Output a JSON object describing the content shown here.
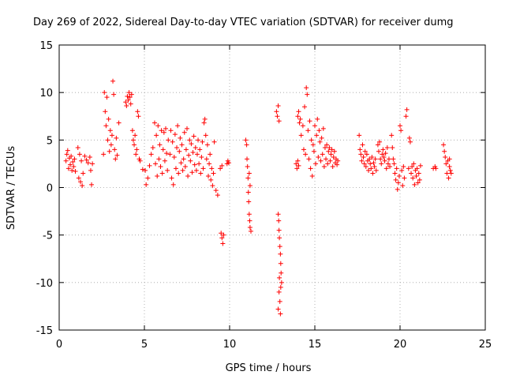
{
  "chart_data": {
    "type": "scatter",
    "title": "Day 269 of 2022, Sidereal Day-to-day VTEC variation (SDTVAR) for receiver dumg",
    "xlabel": "GPS time / hours",
    "ylabel": "SDTVAR / TECUs",
    "xlim": [
      0,
      25
    ],
    "ylim": [
      -15,
      15
    ],
    "x_ticks": [
      0,
      5,
      10,
      15,
      20,
      25
    ],
    "y_ticks": [
      -15,
      -10,
      -5,
      0,
      5,
      10,
      15
    ],
    "grid": true,
    "marker": "+",
    "color": "#ff0000",
    "series": [
      {
        "name": "SDTVAR",
        "points": [
          [
            0.4,
            2.8
          ],
          [
            0.45,
            3.5
          ],
          [
            0.5,
            3.9
          ],
          [
            0.55,
            2.0
          ],
          [
            0.6,
            3.1
          ],
          [
            0.65,
            2.4
          ],
          [
            0.7,
            3.3
          ],
          [
            0.75,
            1.8
          ],
          [
            0.8,
            2.7
          ],
          [
            0.85,
            2.2
          ],
          [
            0.9,
            3.0
          ],
          [
            0.95,
            1.7
          ],
          [
            1.1,
            4.2
          ],
          [
            1.15,
            1.0
          ],
          [
            1.2,
            3.5
          ],
          [
            1.25,
            0.6
          ],
          [
            1.3,
            2.8
          ],
          [
            1.35,
            0.2
          ],
          [
            1.4,
            1.5
          ],
          [
            1.5,
            3.3
          ],
          [
            1.6,
            2.9
          ],
          [
            1.7,
            2.6
          ],
          [
            1.8,
            3.2
          ],
          [
            1.85,
            1.8
          ],
          [
            1.9,
            0.3
          ],
          [
            1.95,
            2.5
          ],
          [
            2.6,
            3.5
          ],
          [
            2.65,
            10.0
          ],
          [
            2.7,
            8.0
          ],
          [
            2.75,
            6.5
          ],
          [
            2.8,
            9.5
          ],
          [
            2.85,
            5.0
          ],
          [
            2.9,
            7.2
          ],
          [
            2.95,
            3.8
          ],
          [
            3.0,
            6.0
          ],
          [
            3.05,
            4.5
          ],
          [
            3.1,
            5.5
          ],
          [
            3.15,
            11.2
          ],
          [
            3.2,
            9.8
          ],
          [
            3.25,
            4.0
          ],
          [
            3.3,
            3.0
          ],
          [
            3.35,
            5.2
          ],
          [
            3.4,
            3.4
          ],
          [
            3.5,
            6.8
          ],
          [
            3.9,
            9.0
          ],
          [
            3.95,
            8.6
          ],
          [
            4.0,
            9.6
          ],
          [
            4.05,
            9.2
          ],
          [
            4.1,
            10.0
          ],
          [
            4.15,
            9.5
          ],
          [
            4.2,
            8.8
          ],
          [
            4.25,
            9.8
          ],
          [
            4.3,
            6.0
          ],
          [
            4.35,
            5.0
          ],
          [
            4.4,
            4.5
          ],
          [
            4.45,
            5.5
          ],
          [
            4.5,
            3.5
          ],
          [
            4.55,
            4.0
          ],
          [
            4.6,
            8.0
          ],
          [
            4.65,
            7.5
          ],
          [
            4.7,
            3.0
          ],
          [
            4.75,
            2.8
          ],
          [
            4.9,
            1.9
          ],
          [
            5.05,
            1.8
          ],
          [
            5.1,
            0.3
          ],
          [
            5.2,
            1.0
          ],
          [
            5.3,
            2.3
          ],
          [
            5.4,
            3.5
          ],
          [
            5.5,
            4.2
          ],
          [
            5.6,
            6.8
          ],
          [
            5.65,
            2.5
          ],
          [
            5.7,
            5.5
          ],
          [
            5.75,
            1.2
          ],
          [
            5.8,
            6.5
          ],
          [
            5.85,
            3.0
          ],
          [
            5.9,
            4.5
          ],
          [
            5.95,
            2.2
          ],
          [
            6.0,
            6.0
          ],
          [
            6.05,
            1.5
          ],
          [
            6.1,
            4.0
          ],
          [
            6.15,
            5.8
          ],
          [
            6.2,
            2.8
          ],
          [
            6.25,
            6.2
          ],
          [
            6.3,
            3.6
          ],
          [
            6.35,
            1.8
          ],
          [
            6.4,
            5.0
          ],
          [
            6.5,
            3.5
          ],
          [
            6.55,
            6.0
          ],
          [
            6.6,
            1.0
          ],
          [
            6.65,
            4.8
          ],
          [
            6.7,
            0.3
          ],
          [
            6.75,
            3.2
          ],
          [
            6.8,
            5.6
          ],
          [
            6.85,
            2.0
          ],
          [
            6.9,
            4.2
          ],
          [
            6.95,
            6.5
          ],
          [
            7.0,
            1.5
          ],
          [
            7.05,
            3.8
          ],
          [
            7.1,
            5.2
          ],
          [
            7.15,
            2.6
          ],
          [
            7.2,
            4.5
          ],
          [
            7.25,
            1.8
          ],
          [
            7.3,
            3.0
          ],
          [
            7.35,
            5.8
          ],
          [
            7.4,
            2.2
          ],
          [
            7.45,
            4.0
          ],
          [
            7.5,
            6.2
          ],
          [
            7.55,
            1.2
          ],
          [
            7.6,
            3.4
          ],
          [
            7.65,
            5.0
          ],
          [
            7.7,
            2.8
          ],
          [
            7.75,
            4.6
          ],
          [
            7.8,
            1.6
          ],
          [
            7.85,
            3.7
          ],
          [
            7.9,
            5.4
          ],
          [
            7.95,
            2.4
          ],
          [
            8.0,
            4.2
          ],
          [
            8.05,
            1.8
          ],
          [
            8.1,
            3.5
          ],
          [
            8.15,
            5.0
          ],
          [
            8.2,
            2.5
          ],
          [
            8.25,
            4.0
          ],
          [
            8.3,
            1.5
          ],
          [
            8.35,
            3.2
          ],
          [
            8.4,
            4.8
          ],
          [
            8.45,
            2.0
          ],
          [
            8.5,
            6.8
          ],
          [
            8.55,
            7.2
          ],
          [
            8.6,
            5.5
          ],
          [
            8.65,
            3.0
          ],
          [
            8.7,
            4.5
          ],
          [
            8.75,
            1.2
          ],
          [
            8.8,
            2.5
          ],
          [
            8.85,
            3.5
          ],
          [
            8.9,
            0.8
          ],
          [
            8.95,
            2.0
          ],
          [
            9.0,
            0.2
          ],
          [
            9.05,
            1.5
          ],
          [
            9.1,
            4.8
          ],
          [
            9.2,
            -0.3
          ],
          [
            9.3,
            -0.8
          ],
          [
            9.5,
            -4.8
          ],
          [
            9.55,
            -5.3
          ],
          [
            9.6,
            -5.9
          ],
          [
            9.65,
            -5.0
          ],
          [
            9.45,
            2.0
          ],
          [
            9.55,
            2.3
          ],
          [
            9.85,
            2.5
          ],
          [
            9.9,
            2.8
          ],
          [
            9.95,
            2.6
          ],
          [
            10.95,
            5.0
          ],
          [
            11.0,
            4.5
          ],
          [
            11.02,
            3.0
          ],
          [
            11.05,
            2.2
          ],
          [
            11.08,
            1.0
          ],
          [
            11.1,
            -0.5
          ],
          [
            11.12,
            -1.5
          ],
          [
            11.15,
            -2.8
          ],
          [
            11.18,
            -3.5
          ],
          [
            11.2,
            -4.2
          ],
          [
            11.25,
            -4.6
          ],
          [
            11.15,
            1.5
          ],
          [
            11.2,
            0.2
          ],
          [
            12.75,
            8.0
          ],
          [
            12.8,
            7.5
          ],
          [
            12.85,
            8.6
          ],
          [
            12.9,
            7.0
          ],
          [
            12.85,
            -2.8
          ],
          [
            12.88,
            -3.5
          ],
          [
            12.9,
            -4.5
          ],
          [
            12.92,
            -5.3
          ],
          [
            12.95,
            -6.2
          ],
          [
            12.98,
            -7.0
          ],
          [
            13.0,
            -8.0
          ],
          [
            13.02,
            -9.0
          ],
          [
            13.05,
            -10.0
          ],
          [
            12.9,
            -11.0
          ],
          [
            12.95,
            -12.0
          ],
          [
            12.85,
            -12.8
          ],
          [
            12.98,
            -13.3
          ],
          [
            13.0,
            -10.5
          ],
          [
            12.92,
            -9.5
          ],
          [
            13.9,
            2.5
          ],
          [
            13.95,
            2.0
          ],
          [
            14.0,
            2.8
          ],
          [
            14.05,
            2.3
          ],
          [
            14.0,
            7.5
          ],
          [
            14.05,
            8.0
          ],
          [
            14.1,
            6.8
          ],
          [
            14.15,
            7.2
          ],
          [
            14.2,
            5.5
          ],
          [
            14.3,
            6.5
          ],
          [
            14.35,
            4.0
          ],
          [
            14.4,
            8.5
          ],
          [
            14.45,
            3.5
          ],
          [
            14.5,
            10.5
          ],
          [
            14.55,
            9.8
          ],
          [
            14.6,
            6.0
          ],
          [
            14.65,
            3.0
          ],
          [
            14.7,
            7.0
          ],
          [
            14.75,
            2.0
          ],
          [
            14.8,
            5.0
          ],
          [
            14.85,
            1.2
          ],
          [
            14.9,
            4.5
          ],
          [
            14.95,
            3.8
          ],
          [
            15.0,
            6.5
          ],
          [
            15.05,
            2.5
          ],
          [
            15.1,
            5.5
          ],
          [
            15.15,
            7.2
          ],
          [
            15.2,
            3.2
          ],
          [
            15.25,
            6.0
          ],
          [
            15.3,
            4.8
          ],
          [
            15.35,
            2.8
          ],
          [
            15.4,
            5.2
          ],
          [
            15.45,
            3.5
          ],
          [
            15.5,
            6.2
          ],
          [
            15.55,
            2.2
          ],
          [
            15.6,
            4.2
          ],
          [
            15.65,
            3.0
          ],
          [
            15.7,
            4.5
          ],
          [
            15.75,
            2.5
          ],
          [
            15.8,
            3.8
          ],
          [
            15.85,
            4.2
          ],
          [
            15.9,
            2.8
          ],
          [
            15.95,
            3.5
          ],
          [
            16.0,
            4.0
          ],
          [
            16.05,
            2.2
          ],
          [
            16.1,
            3.2
          ],
          [
            16.15,
            3.8
          ],
          [
            16.2,
            2.6
          ],
          [
            16.25,
            3.0
          ],
          [
            16.3,
            2.4
          ],
          [
            16.35,
            2.8
          ],
          [
            17.6,
            5.5
          ],
          [
            17.65,
            4.0
          ],
          [
            17.7,
            3.5
          ],
          [
            17.75,
            2.8
          ],
          [
            17.8,
            4.5
          ],
          [
            17.85,
            3.2
          ],
          [
            17.9,
            2.5
          ],
          [
            17.95,
            3.8
          ],
          [
            18.0,
            2.2
          ],
          [
            18.05,
            3.5
          ],
          [
            18.1,
            2.8
          ],
          [
            18.15,
            1.8
          ],
          [
            18.2,
            3.0
          ],
          [
            18.25,
            2.5
          ],
          [
            18.3,
            2.0
          ],
          [
            18.35,
            3.2
          ],
          [
            18.4,
            1.5
          ],
          [
            18.45,
            2.6
          ],
          [
            18.5,
            2.2
          ],
          [
            18.55,
            3.0
          ],
          [
            18.6,
            1.8
          ],
          [
            18.7,
            4.5
          ],
          [
            18.75,
            3.8
          ],
          [
            18.8,
            4.8
          ],
          [
            18.85,
            3.0
          ],
          [
            18.9,
            2.5
          ],
          [
            18.95,
            3.5
          ],
          [
            19.0,
            4.0
          ],
          [
            19.05,
            3.2
          ],
          [
            19.1,
            2.8
          ],
          [
            19.15,
            3.6
          ],
          [
            19.2,
            2.0
          ],
          [
            19.25,
            4.2
          ],
          [
            19.3,
            2.5
          ],
          [
            19.35,
            3.0
          ],
          [
            19.4,
            2.2
          ],
          [
            19.5,
            5.5
          ],
          [
            19.55,
            4.2
          ],
          [
            19.6,
            3.0
          ],
          [
            19.65,
            2.5
          ],
          [
            19.7,
            1.5
          ],
          [
            19.75,
            0.8
          ],
          [
            19.8,
            2.0
          ],
          [
            19.85,
            -0.2
          ],
          [
            19.9,
            0.5
          ],
          [
            19.95,
            1.2
          ],
          [
            20.0,
            6.5
          ],
          [
            20.05,
            6.0
          ],
          [
            20.1,
            1.8
          ],
          [
            20.15,
            0.2
          ],
          [
            20.2,
            2.2
          ],
          [
            20.25,
            1.0
          ],
          [
            20.35,
            7.5
          ],
          [
            20.4,
            8.2
          ],
          [
            20.5,
            2.0
          ],
          [
            20.55,
            5.2
          ],
          [
            20.6,
            4.8
          ],
          [
            20.65,
            1.5
          ],
          [
            20.7,
            2.2
          ],
          [
            20.75,
            1.0
          ],
          [
            20.8,
            2.5
          ],
          [
            20.85,
            0.3
          ],
          [
            20.9,
            1.8
          ],
          [
            20.95,
            1.2
          ],
          [
            21.0,
            2.0
          ],
          [
            21.05,
            0.5
          ],
          [
            21.1,
            1.5
          ],
          [
            21.15,
            0.8
          ],
          [
            21.2,
            2.3
          ],
          [
            21.95,
            2.0
          ],
          [
            22.05,
            2.2
          ],
          [
            22.1,
            2.0
          ],
          [
            22.55,
            4.5
          ],
          [
            22.6,
            3.8
          ],
          [
            22.65,
            3.2
          ],
          [
            22.7,
            2.5
          ],
          [
            22.75,
            1.5
          ],
          [
            22.8,
            2.8
          ],
          [
            22.85,
            1.0
          ],
          [
            22.9,
            2.2
          ],
          [
            22.95,
            1.8
          ],
          [
            23.0,
            1.5
          ],
          [
            22.9,
            3.0
          ]
        ]
      }
    ]
  }
}
